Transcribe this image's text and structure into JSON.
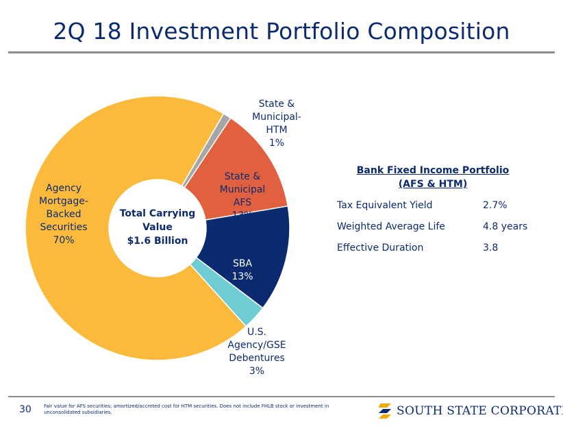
{
  "title": "2Q 18 Investment Portfolio Composition",
  "chart_data": {
    "type": "pie",
    "title": "",
    "center_label": "Total Carrying\nValue\n$1.6 Billion",
    "slices": [
      {
        "label": "State & Municipal- HTM",
        "display": "State &\nMunicipal-\nHTM\n1%",
        "value": 1,
        "color": "#a6a6a6",
        "text_color": "#0b2a6f"
      },
      {
        "label": "State & Municipal AFS",
        "display": "State &\nMunicipal\nAFS\n13%",
        "value": 13,
        "color": "#e0603f",
        "text_color": "#0b2a6f"
      },
      {
        "label": "SBA",
        "display": "SBA\n13%",
        "value": 13,
        "color": "#0b2a6f",
        "text_color": "#ffffff"
      },
      {
        "label": "U.S. Agency/GSE Debentures",
        "display": "U.S.\nAgency/GSE\nDebentures\n3%",
        "value": 3,
        "color": "#70ccd3",
        "text_color": "#0b2a6f"
      },
      {
        "label": "Agency Mortgage-Backed Securities",
        "display": "Agency\nMortgage-\nBacked\nSecurities\n70%",
        "value": 70,
        "color": "#fbba3c",
        "text_color": "#0b2a6f"
      }
    ]
  },
  "stats": {
    "title_line1": "Bank Fixed Income Portfolio",
    "title_line2": "(AFS & HTM)",
    "rows": [
      {
        "label": "Tax Equivalent Yield",
        "value": "2.7%"
      },
      {
        "label": "Weighted Average Life",
        "value": "4.8 years"
      },
      {
        "label": "Effective Duration",
        "value": "3.8"
      }
    ]
  },
  "footer": {
    "page_number": "30",
    "note": "Fair value for AFS securities; amortized/accreted cost for HTM securities. Does not include FHLB stock or investment in unconsolidated subsidiaries.",
    "logo_text": "SOUTH STATE CORPORATION"
  }
}
